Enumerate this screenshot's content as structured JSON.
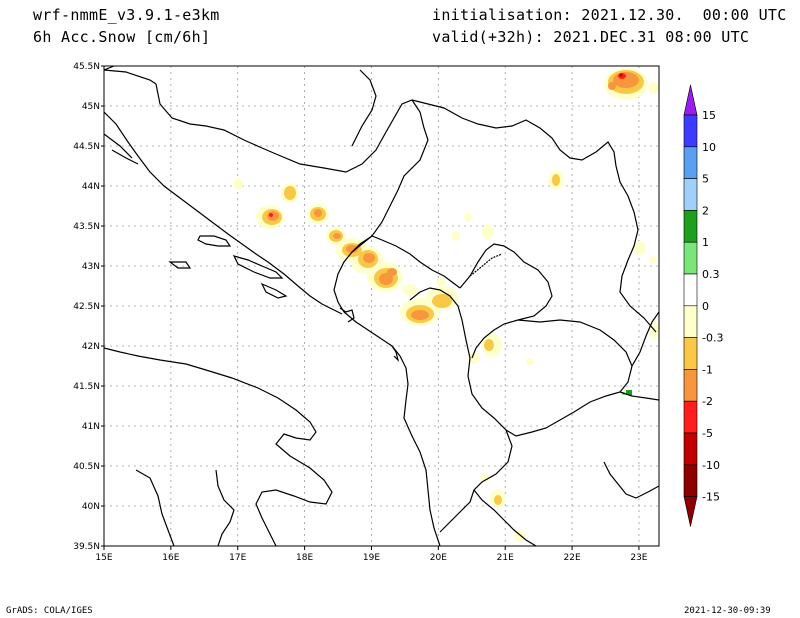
{
  "header": {
    "model": "wrf-nmmE_v3.9.1-e3km",
    "field": "6h Acc.Snow [cm/6h]",
    "init": "initialisation: 2021.12.30.  00:00 UTC",
    "valid": "valid(+32h): 2021.DEC.31 08:00 UTC"
  },
  "footer": {
    "left": "GrADS: COLA/IGES",
    "right": "2021-12-30-09:39"
  },
  "map": {
    "lon_range": [
      15,
      23.3
    ],
    "lat_range": [
      39.5,
      45.5
    ],
    "lon_labels": [
      "15E",
      "16E",
      "17E",
      "18E",
      "19E",
      "20E",
      "21E",
      "22E",
      "23E"
    ],
    "lat_labels": [
      "39.5N",
      "40N",
      "40.5N",
      "41N",
      "41.5N",
      "42N",
      "42.5N",
      "43N",
      "43.5N",
      "44N",
      "44.5N",
      "45N",
      "45.5N"
    ]
  },
  "colorbar": {
    "labels": [
      "15",
      "10",
      "5",
      "2",
      "1",
      "0.3",
      "0",
      "-0.3",
      "-1",
      "-2",
      "-5",
      "-10",
      "-15"
    ],
    "colors": [
      "#9a1df0",
      "#3c3cff",
      "#5aa0f0",
      "#a0d0f8",
      "#1ea01e",
      "#7ae67a",
      "#ffffff",
      "#ffffcc",
      "#f8c846",
      "#f89640",
      "#ff1e1e",
      "#c00000",
      "#8c0000"
    ]
  }
}
